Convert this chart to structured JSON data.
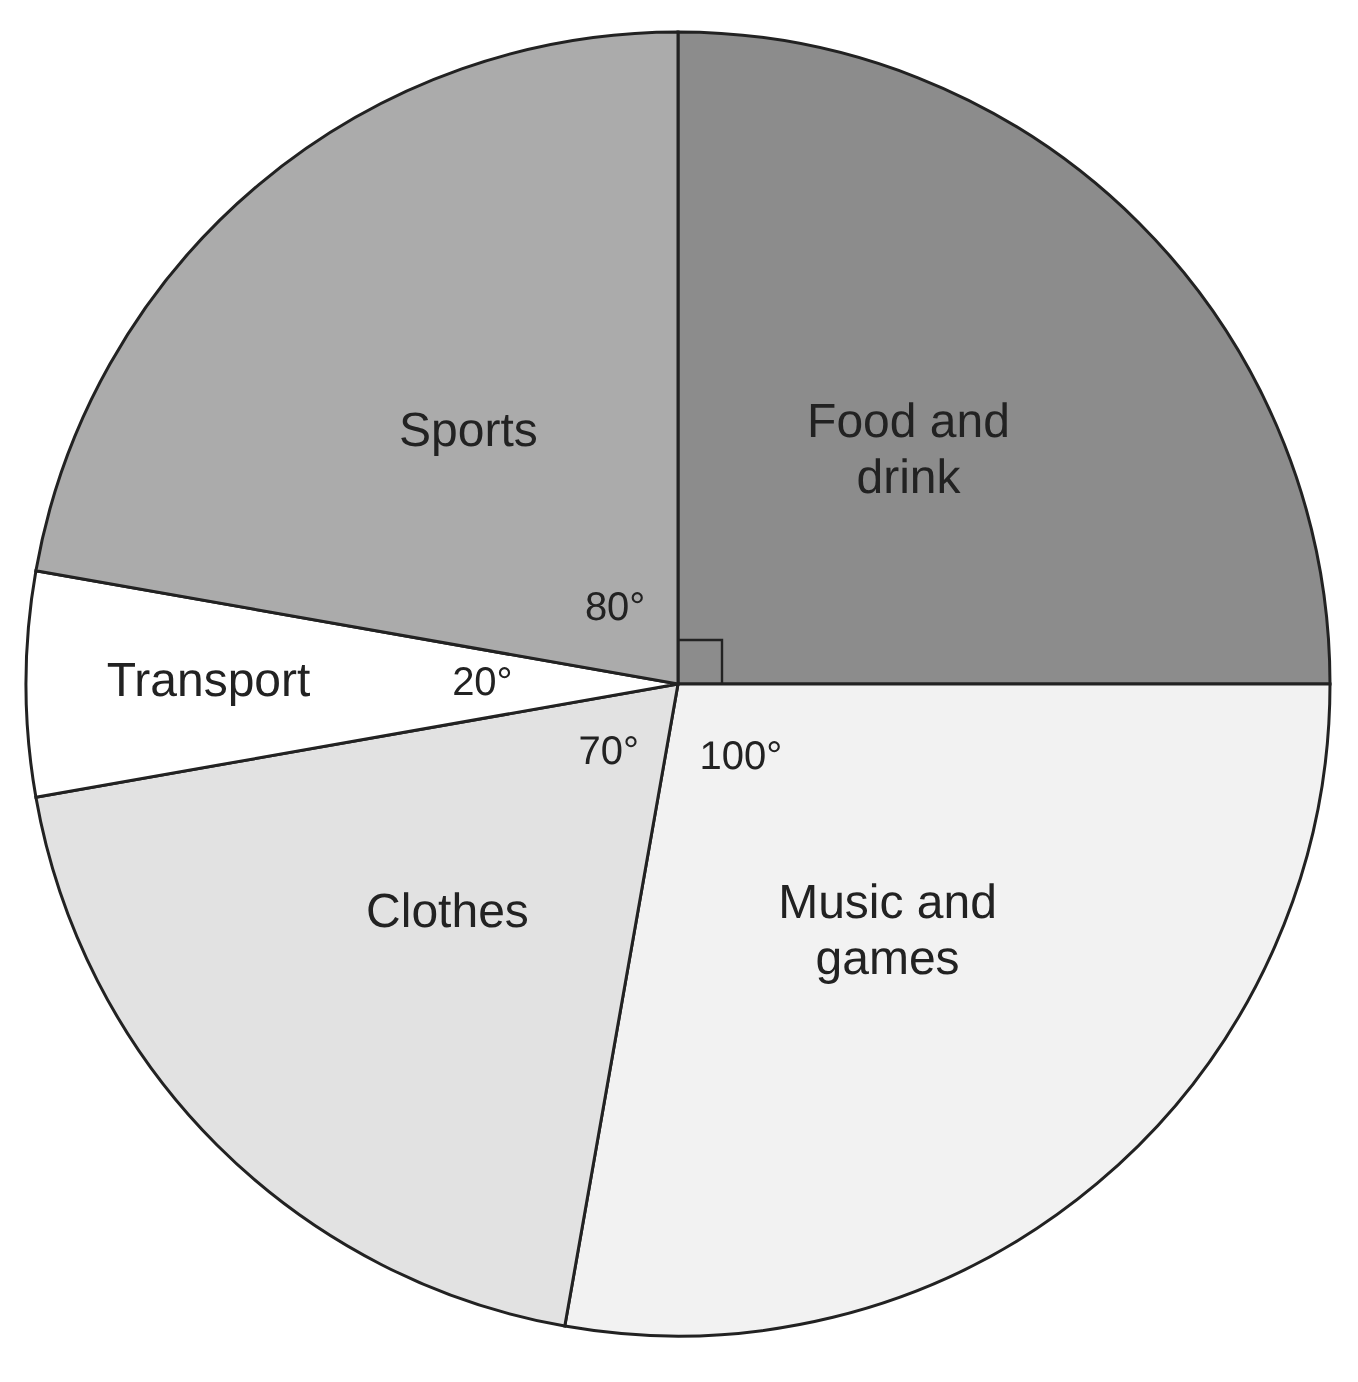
{
  "chart_data": {
    "type": "pie",
    "categories": [
      "Food and drink",
      "Music and games",
      "Clothes",
      "Transport",
      "Sports"
    ],
    "values": [
      90,
      100,
      70,
      20,
      80
    ],
    "value_labels": [
      null,
      "100°",
      "70°",
      "20°",
      "80°"
    ],
    "colors": [
      "#8c8c8c",
      "#f2f2f2",
      "#e2e2e2",
      "#ffffff",
      "#ababab"
    ]
  }
}
